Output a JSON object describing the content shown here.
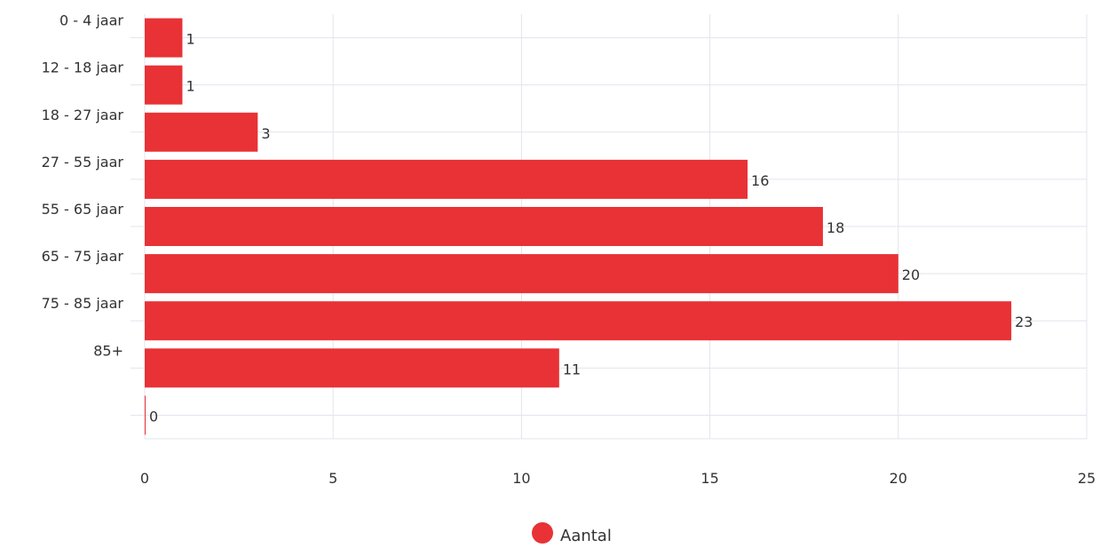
{
  "chart_data": {
    "type": "bar",
    "orientation": "horizontal",
    "categories": [
      "0 - 4 jaar",
      "12 - 18 jaar",
      "18 - 27 jaar",
      "27 - 55 jaar",
      "55 - 65 jaar",
      "65 - 75 jaar",
      "75 - 85 jaar",
      "85+",
      ""
    ],
    "series": [
      {
        "name": "Aantal",
        "color": "#e83236",
        "values": [
          1,
          1,
          3,
          16,
          18,
          20,
          23,
          11,
          0
        ]
      }
    ],
    "xlim": [
      0,
      25
    ],
    "xticks": [
      0,
      5,
      10,
      15,
      20,
      25
    ],
    "title": "",
    "xlabel": "",
    "ylabel": "",
    "grid": true,
    "legend_position": "bottom-center",
    "data_labels": true
  }
}
